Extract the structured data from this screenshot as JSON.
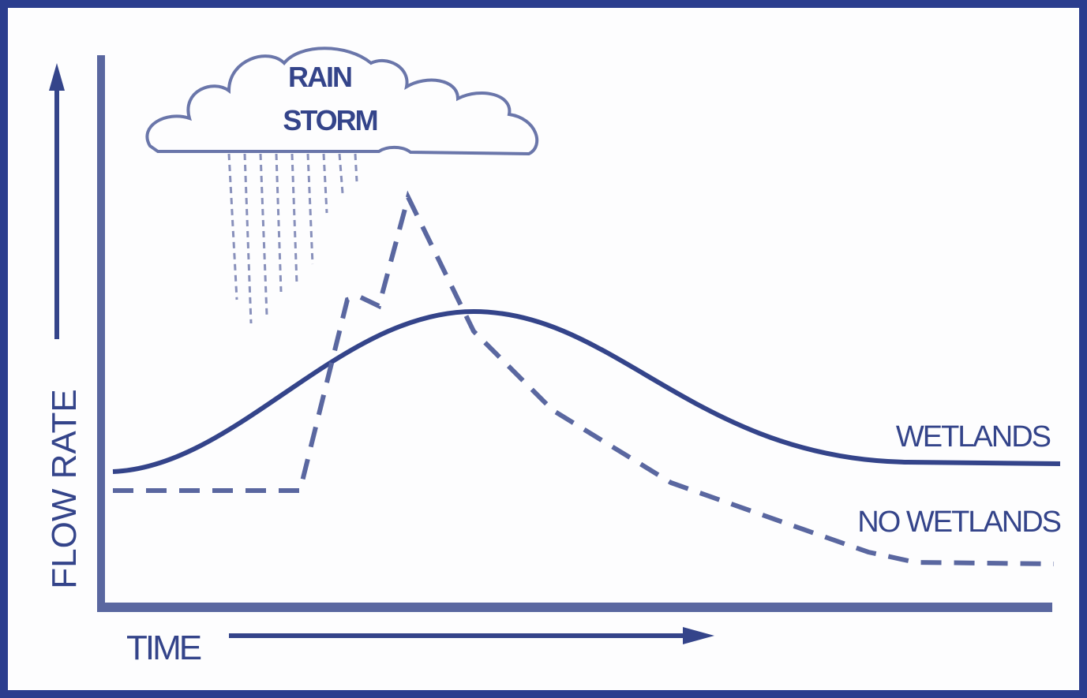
{
  "cloud": {
    "lines": [
      "RAIN",
      "STORM"
    ]
  },
  "axes": {
    "y_label": "FLOW RATE",
    "x_label": "TIME"
  },
  "curves": [
    {
      "label": "WETLANDS"
    },
    {
      "label": "NO WETLANDS"
    }
  ]
}
